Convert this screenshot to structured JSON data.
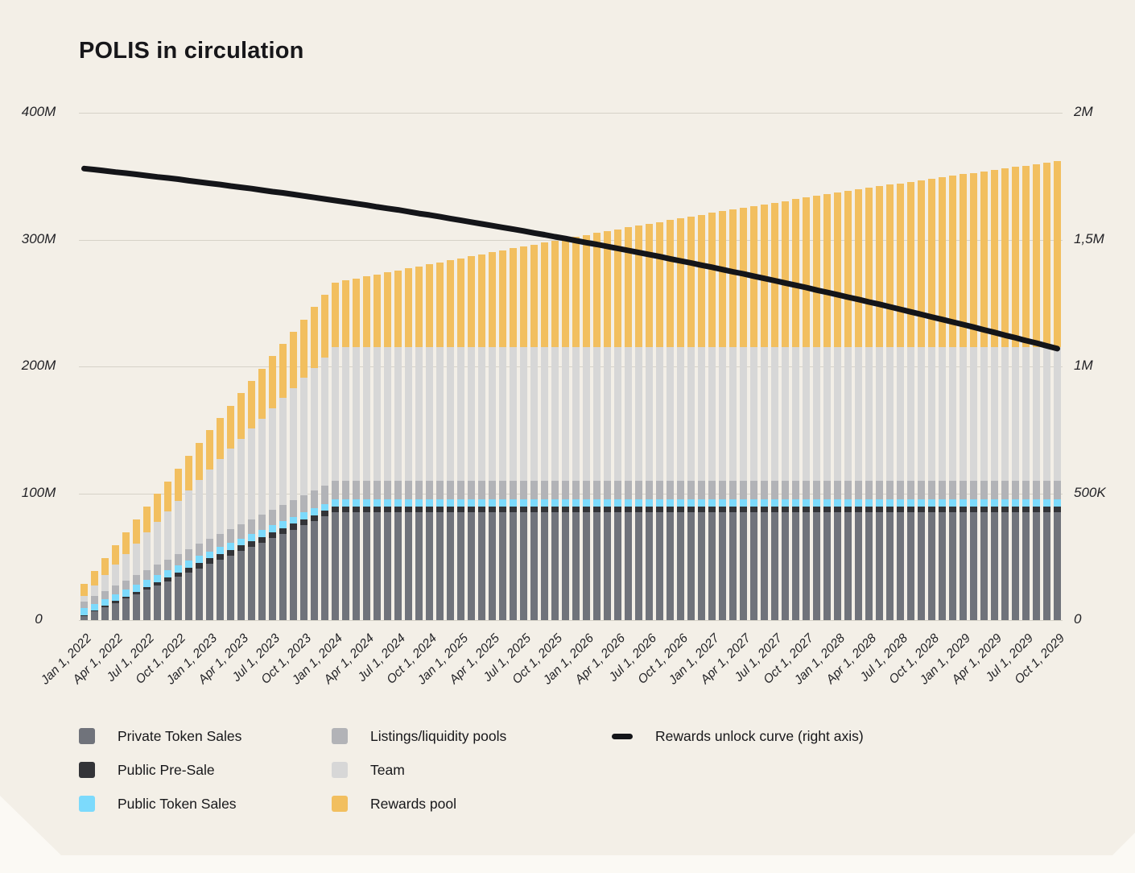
{
  "page": {
    "background": "#fbf9f4",
    "card_background": "#f3efe7"
  },
  "chart": {
    "title": "POLIS in circulation",
    "left_axis": {
      "ticks": [
        "400M",
        "300M",
        "200M",
        "100M",
        "0"
      ],
      "max": 400
    },
    "right_axis": {
      "ticks": [
        "2M",
        "1,5M",
        "1M",
        "500K",
        "0"
      ],
      "max": 2
    }
  },
  "legend": {
    "columns": [
      [
        0,
        1,
        2
      ],
      [
        3,
        4,
        5
      ],
      [
        6
      ]
    ],
    "items": [
      {
        "label": "Private Token Sales",
        "color": "#70737b",
        "type": "square"
      },
      {
        "label": "Public Pre-Sale",
        "color": "#333438",
        "type": "square"
      },
      {
        "label": "Public Token Sales",
        "color": "#7cdafc",
        "type": "square"
      },
      {
        "label": "Listings/liquidity pools",
        "color": "#b2b3b7",
        "type": "square"
      },
      {
        "label": "Team",
        "color": "#d7d7d7",
        "type": "square"
      },
      {
        "label": "Rewards pool",
        "color": "#f2bf5f",
        "type": "square"
      },
      {
        "label": "Rewards unlock curve (right axis)",
        "color": "#141519",
        "type": "line"
      }
    ]
  },
  "chart_data": {
    "type": "bar",
    "subtype": "stacked-bars-with-line",
    "value_unit": "millions of tokens",
    "x_unit": "month",
    "x_tick_every": 3,
    "left_ylim": [
      0,
      400
    ],
    "right_ylim": [
      0,
      2
    ],
    "grid": "horizontal",
    "legend_position": "bottom",
    "x_tick_labels": [
      "Jan 1, 2022",
      "Apr 1, 2022",
      "Jul 1, 2022",
      "Oct 1, 2022",
      "Jan 1, 2023",
      "Apr 1, 2023",
      "Jul 1, 2023",
      "Oct 1, 2023",
      "Jan 1, 2024",
      "Apr 1, 2024",
      "Jul 1, 2024",
      "Oct 1, 2024",
      "Jan 1, 2025",
      "Apr 1, 2025",
      "Jul 1, 2025",
      "Oct 1, 2025",
      "Jan 1, 2026",
      "Apr 1, 2026",
      "Jul 1, 2026",
      "Oct 1, 2026",
      "Jan 1, 2027",
      "Apr 1, 2027",
      "Jul 1, 2027",
      "Oct 1, 2027",
      "Jan 1, 2028",
      "Apr 1, 2028",
      "Jul 1, 2028",
      "Oct 1, 2028",
      "Jan 1, 2029",
      "Apr 1, 2029",
      "Jul 1, 2029",
      "Oct 1, 2029"
    ],
    "series": [
      {
        "key": "private",
        "name": "Private Token Sales",
        "color": "#70737b",
        "values": [
          3.4,
          6.8,
          10.2,
          13.6,
          17,
          20.4,
          23.8,
          27.2,
          30.6,
          34,
          37.4,
          40.8,
          44.2,
          47.6,
          51,
          54.4,
          57.8,
          61.2,
          64.6,
          68,
          71.4,
          74.8,
          78.2,
          81.6,
          85,
          85,
          85,
          85,
          85,
          85,
          85,
          85,
          85,
          85,
          85,
          85,
          85,
          85,
          85,
          85,
          85,
          85,
          85,
          85,
          85,
          85,
          85,
          85,
          85,
          85,
          85,
          85,
          85,
          85,
          85,
          85,
          85,
          85,
          85,
          85,
          85,
          85,
          85,
          85,
          85,
          85,
          85,
          85,
          85,
          85,
          85,
          85,
          85,
          85,
          85,
          85,
          85,
          85,
          85,
          85,
          85,
          85,
          85,
          85,
          85,
          85,
          85,
          85,
          85,
          85,
          85,
          85,
          85,
          85
        ]
      },
      {
        "key": "presale",
        "name": "Public Pre-Sale",
        "color": "#333438",
        "values": [
          0.4,
          0.7,
          1,
          1.4,
          1.7,
          2.1,
          2.4,
          2.8,
          3.1,
          3.5,
          3.8,
          4.2,
          4.5,
          4.5,
          4.5,
          4.5,
          4.5,
          4.5,
          4.5,
          4.5,
          4.5,
          4.5,
          4.5,
          4.5,
          4.5,
          4.5,
          4.5,
          4.5,
          4.5,
          4.5,
          4.5,
          4.5,
          4.5,
          4.5,
          4.5,
          4.5,
          4.5,
          4.5,
          4.5,
          4.5,
          4.5,
          4.5,
          4.5,
          4.5,
          4.5,
          4.5,
          4.5,
          4.5,
          4.5,
          4.5,
          4.5,
          4.5,
          4.5,
          4.5,
          4.5,
          4.5,
          4.5,
          4.5,
          4.5,
          4.5,
          4.5,
          4.5,
          4.5,
          4.5,
          4.5,
          4.5,
          4.5,
          4.5,
          4.5,
          4.5,
          4.5,
          4.5,
          4.5,
          4.5,
          4.5,
          4.5,
          4.5,
          4.5,
          4.5,
          4.5,
          4.5,
          4.5,
          4.5,
          4.5,
          4.5,
          4.5,
          4.5,
          4.5,
          4.5,
          4.5,
          4.5,
          4.5,
          4.5,
          4.5
        ]
      },
      {
        "key": "public",
        "name": "Public Token Sales",
        "color": "#7cdafc",
        "values": [
          5.5,
          5.5,
          5.5,
          5.5,
          5.5,
          5.5,
          5.5,
          5.5,
          5.5,
          5.5,
          5.5,
          5.5,
          5.5,
          5.5,
          5.5,
          5.5,
          5.5,
          5.5,
          5.5,
          5.5,
          5.5,
          5.5,
          5.5,
          5.5,
          5.5,
          5.5,
          5.5,
          5.5,
          5.5,
          5.5,
          5.5,
          5.5,
          5.5,
          5.5,
          5.5,
          5.5,
          5.5,
          5.5,
          5.5,
          5.5,
          5.5,
          5.5,
          5.5,
          5.5,
          5.5,
          5.5,
          5.5,
          5.5,
          5.5,
          5.5,
          5.5,
          5.5,
          5.5,
          5.5,
          5.5,
          5.5,
          5.5,
          5.5,
          5.5,
          5.5,
          5.5,
          5.5,
          5.5,
          5.5,
          5.5,
          5.5,
          5.5,
          5.5,
          5.5,
          5.5,
          5.5,
          5.5,
          5.5,
          5.5,
          5.5,
          5.5,
          5.5,
          5.5,
          5.5,
          5.5,
          5.5,
          5.5,
          5.5,
          5.5,
          5.5,
          5.5,
          5.5,
          5.5,
          5.5,
          5.5,
          5.5,
          5.5,
          5.5,
          5.5
        ]
      },
      {
        "key": "listings",
        "name": "Listings/liquidity pools",
        "color": "#b2b3b7",
        "values": [
          5.4,
          5.8,
          6.2,
          6.6,
          7,
          7.4,
          7.8,
          8.2,
          8.6,
          9,
          9.4,
          9.8,
          10.2,
          10.6,
          11,
          11.4,
          11.8,
          12.2,
          12.6,
          13,
          13.4,
          13.8,
          14.2,
          14.6,
          15,
          15,
          15,
          15,
          15,
          15,
          15,
          15,
          15,
          15,
          15,
          15,
          15,
          15,
          15,
          15,
          15,
          15,
          15,
          15,
          15,
          15,
          15,
          15,
          15,
          15,
          15,
          15,
          15,
          15,
          15,
          15,
          15,
          15,
          15,
          15,
          15,
          15,
          15,
          15,
          15,
          15,
          15,
          15,
          15,
          15,
          15,
          15,
          15,
          15,
          15,
          15,
          15,
          15,
          15,
          15,
          15,
          15,
          15,
          15,
          15,
          15,
          15,
          15,
          15,
          15,
          15,
          15,
          15,
          15
        ]
      },
      {
        "key": "team",
        "name": "Team",
        "color": "#d7d7d7",
        "values": [
          4.2,
          8.4,
          12.6,
          16.8,
          21,
          25.2,
          29.4,
          33.6,
          37.8,
          42,
          46.2,
          50.4,
          54.6,
          58.8,
          63,
          67.2,
          71.4,
          75.6,
          79.8,
          84,
          88.2,
          92.4,
          96.6,
          100.8,
          105,
          105,
          105,
          105,
          105,
          105,
          105,
          105,
          105,
          105,
          105,
          105,
          105,
          105,
          105,
          105,
          105,
          105,
          105,
          105,
          105,
          105,
          105,
          105,
          105,
          105,
          105,
          105,
          105,
          105,
          105,
          105,
          105,
          105,
          105,
          105,
          105,
          105,
          105,
          105,
          105,
          105,
          105,
          105,
          105,
          105,
          105,
          105,
          105,
          105,
          105,
          105,
          105,
          105,
          105,
          105,
          105,
          105,
          105,
          105,
          105,
          105,
          105,
          105,
          105,
          105,
          105,
          105,
          105,
          105
        ]
      },
      {
        "key": "rewards",
        "name": "Rewards pool",
        "color": "#f2bf5f",
        "values": [
          9.8,
          11.6,
          13.3,
          15.1,
          16.9,
          18.6,
          20.4,
          22.1,
          23.9,
          25.6,
          27.3,
          29.1,
          30.8,
          32.5,
          34.2,
          35.9,
          37.6,
          39.3,
          41,
          42.7,
          44.4,
          46,
          47.7,
          49.4,
          51,
          52.7,
          54.3,
          55.9,
          57.6,
          59.2,
          60.8,
          62.4,
          64,
          65.6,
          67.2,
          68.8,
          70.4,
          71.9,
          73.5,
          75,
          76.6,
          78.1,
          79.7,
          81.2,
          82.7,
          84.2,
          85.7,
          87.2,
          88.7,
          90.2,
          91.7,
          93.1,
          94.6,
          96,
          97.5,
          98.9,
          100.3,
          101.8,
          103.2,
          104.6,
          106,
          107.3,
          108.7,
          110.1,
          111.4,
          112.8,
          114.1,
          115.4,
          116.8,
          118.1,
          119.4,
          120.7,
          121.9,
          123.2,
          124.5,
          125.7,
          127,
          128.2,
          129.4,
          130.7,
          131.9,
          133.1,
          134.2,
          135.4,
          136.6,
          137.7,
          138.9,
          140,
          141.1,
          142.2,
          143.3,
          144.4,
          145.5,
          146.6
        ]
      }
    ],
    "line_series": {
      "name": "Rewards unlock curve (right axis)",
      "color": "#141519",
      "axis": "right",
      "values": [
        1.78,
        1.776,
        1.771,
        1.766,
        1.762,
        1.757,
        1.752,
        1.747,
        1.743,
        1.738,
        1.732,
        1.727,
        1.722,
        1.717,
        1.711,
        1.706,
        1.701,
        1.695,
        1.689,
        1.684,
        1.678,
        1.672,
        1.666,
        1.66,
        1.654,
        1.648,
        1.642,
        1.636,
        1.629,
        1.623,
        1.617,
        1.61,
        1.603,
        1.597,
        1.59,
        1.583,
        1.576,
        1.569,
        1.562,
        1.555,
        1.548,
        1.541,
        1.534,
        1.526,
        1.519,
        1.511,
        1.504,
        1.496,
        1.488,
        1.481,
        1.473,
        1.465,
        1.457,
        1.449,
        1.441,
        1.433,
        1.424,
        1.416,
        1.408,
        1.399,
        1.391,
        1.382,
        1.373,
        1.365,
        1.356,
        1.347,
        1.338,
        1.329,
        1.32,
        1.311,
        1.301,
        1.292,
        1.283,
        1.273,
        1.264,
        1.254,
        1.245,
        1.235,
        1.225,
        1.215,
        1.205,
        1.195,
        1.185,
        1.175,
        1.165,
        1.155,
        1.144,
        1.134,
        1.123,
        1.113,
        1.102,
        1.092,
        1.081,
        1.07
      ]
    }
  }
}
